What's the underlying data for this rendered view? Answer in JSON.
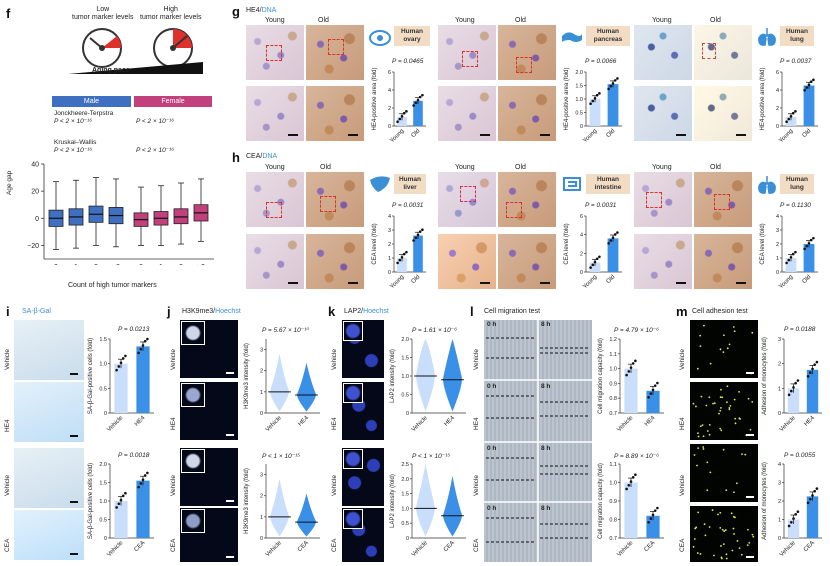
{
  "panels": {
    "f": {
      "label": "f",
      "low_text": "Low\ntumor marker levels",
      "high_text": "High\ntumor marker levels",
      "aging_pace": "Aging pace",
      "male": "Male",
      "female": "Female",
      "jt_label": "Jonckheere-Terpstra",
      "jt_male": "P < 2 × 10⁻¹⁶",
      "jt_female": "P < 2 × 10⁻¹⁶",
      "kw_label": "Kruskal–Wallis",
      "kw_male": "P < 2 × 10⁻¹⁶",
      "kw_female": "P < 2 × 10⁻¹⁶",
      "ylabel": "Age gap",
      "xlabel": "Count of high tumor markers",
      "colors": {
        "male": "#3f6fc1",
        "female": "#c2407c"
      }
    },
    "g": {
      "label": "g",
      "stain_a": "HE4/",
      "stain_b": "DNA",
      "young": "Young",
      "old": "Old",
      "organs": [
        "Human ovary",
        "Human pancreas",
        "Human lung"
      ],
      "pvals": [
        "P = 0.0465",
        "P = 0.0066",
        "P = 0.0037"
      ],
      "ylabel": "HE4-positive area (fold)"
    },
    "h": {
      "label": "h",
      "stain_a": "CEA/",
      "stain_b": "DNA",
      "young": "Young",
      "old": "Old",
      "organs": [
        "Human liver",
        "Human intestine",
        "Human lung"
      ],
      "pvals": [
        "P = 0.0031",
        "P = 0.0031",
        "P = 0.1130"
      ],
      "ylabel": "CEA level (fold)"
    },
    "i": {
      "label": "i",
      "stain": "SA-β-Gal",
      "rows": [
        "Vehicle",
        "HE4",
        "Vehicle",
        "CEA"
      ],
      "pvals": [
        "P = 0.0213",
        "P = 0.0018"
      ],
      "ylabel": "SA-β-Gal-positive cells (fold)",
      "x_top": [
        "Vehicle",
        "HE4"
      ],
      "x_bottom": [
        "Vehicle",
        "CEA"
      ]
    },
    "j": {
      "label": "j",
      "stain_a": "H3K9me3/",
      "stain_b": "Hoechst",
      "rows": [
        "Vehicle",
        "HE4",
        "Vehicle",
        "CEA"
      ],
      "pvals": [
        "P = 5.67 × 10⁻¹⁰",
        "P < 1 × 10⁻¹⁵"
      ],
      "ylabel": "H3K9me3 intensity (fold)",
      "x_top": [
        "Vehicle",
        "HE4"
      ],
      "x_bottom": [
        "Vehicle",
        "CEA"
      ]
    },
    "k": {
      "label": "k",
      "stain_a": "LAP2/",
      "stain_b": "Hoechst",
      "rows": [
        "Vehicle",
        "HE4",
        "Vehicle",
        "CEA"
      ],
      "pvals": [
        "P = 1.61 × 10⁻⁶",
        "P < 1 × 10⁻¹⁵"
      ],
      "ylabel": "LAP2 intensity (fold)",
      "x_top": [
        "Vehicle",
        "HE4"
      ],
      "x_bottom": [
        "Vehicle",
        "CEA"
      ]
    },
    "l": {
      "label": "l",
      "title": "Cell migration test",
      "t0": "0 h",
      "t8": "8 h",
      "rows": [
        "Vehicle",
        "HE4",
        "Vehicle",
        "CEA"
      ],
      "pvals": [
        "P = 4.79 × 10⁻⁶",
        "P = 8.89 × 10⁻⁶"
      ],
      "ylabel": "Cell migration capacity (fold)",
      "x_top": [
        "Vehicle",
        "HE4"
      ],
      "x_bottom": [
        "Vehicle",
        "CEA"
      ]
    },
    "m": {
      "label": "m",
      "title": "Cell adhesion test",
      "rows": [
        "Vehicle",
        "HE4",
        "Vehicle",
        "CEA"
      ],
      "pvals": [
        "P = 0.0188",
        "P = 0.0055"
      ],
      "ylabel": "Adhesion of monocytes (fold)",
      "x_top": [
        "Vehicle",
        "HE4"
      ],
      "x_bottom": [
        "Vehicle",
        "CEA"
      ]
    }
  },
  "chart_data": [
    {
      "type": "box",
      "panel": "f",
      "groups": [
        "Male",
        "Female"
      ],
      "categories": [
        "0",
        "1",
        "2",
        "≥2"
      ],
      "ylim": [
        -30,
        40
      ],
      "yticks": [
        "40",
        "20",
        "0",
        "−20"
      ],
      "series": [
        {
          "name": "Male",
          "median": [
            0,
            1,
            3,
            2
          ],
          "q1": [
            -6,
            -5,
            -3,
            -4
          ],
          "q3": [
            6,
            7,
            9,
            8
          ],
          "min": [
            -23,
            -22,
            -20,
            -21
          ],
          "max": [
            27,
            28,
            30,
            29
          ]
        },
        {
          "name": "Female",
          "median": [
            -1,
            0,
            1,
            4
          ],
          "q1": [
            -6,
            -5,
            -4,
            -2
          ],
          "q3": [
            4,
            5,
            7,
            10
          ],
          "min": [
            -20,
            -20,
            -19,
            -17
          ],
          "max": [
            23,
            24,
            26,
            29
          ]
        }
      ]
    },
    {
      "type": "bar",
      "panel": "g-ovary",
      "categories": [
        "Young",
        "Old"
      ],
      "values": [
        1.0,
        2.8
      ],
      "ylim": [
        0,
        6
      ],
      "yticks": [
        "0",
        "2",
        "4",
        "6"
      ]
    },
    {
      "type": "bar",
      "panel": "g-pancreas",
      "categories": [
        "Young",
        "Old"
      ],
      "values": [
        1.0,
        1.55
      ],
      "ylim": [
        0,
        2
      ],
      "yticks": [
        "0",
        "0.5",
        "1.0",
        "1.5",
        "2.0"
      ]
    },
    {
      "type": "bar",
      "panel": "g-lung",
      "categories": [
        "Young",
        "Old"
      ],
      "values": [
        1.0,
        4.5
      ],
      "ylim": [
        0,
        6
      ],
      "yticks": [
        "0",
        "2",
        "4",
        "6"
      ]
    },
    {
      "type": "bar",
      "panel": "h-liver",
      "categories": [
        "Young",
        "Old"
      ],
      "values": [
        1.0,
        2.6
      ],
      "ylim": [
        0,
        4
      ],
      "yticks": [
        "0",
        "1",
        "2",
        "3",
        "4"
      ]
    },
    {
      "type": "bar",
      "panel": "h-intestine",
      "categories": [
        "Young",
        "Old"
      ],
      "values": [
        1.0,
        3.6
      ],
      "ylim": [
        0,
        6
      ],
      "yticks": [
        "0",
        "2",
        "4",
        "6"
      ]
    },
    {
      "type": "bar",
      "panel": "h-lung",
      "categories": [
        "Young",
        "Old"
      ],
      "values": [
        1.0,
        2.0
      ],
      "ylim": [
        0,
        4
      ],
      "yticks": [
        "0",
        "1",
        "2",
        "3",
        "4"
      ]
    },
    {
      "type": "bar",
      "panel": "i-top",
      "categories": [
        "Vehicle",
        "HE4"
      ],
      "values": [
        1.0,
        1.35
      ],
      "ylim": [
        0,
        1.5
      ],
      "yticks": [
        "0",
        "0.5",
        "1.0",
        "1.5"
      ]
    },
    {
      "type": "bar",
      "panel": "i-bottom",
      "categories": [
        "Vehicle",
        "CEA"
      ],
      "values": [
        1.0,
        1.55
      ],
      "ylim": [
        0,
        2
      ],
      "yticks": [
        "0",
        "0.5",
        "1.0",
        "1.5",
        "2.0"
      ]
    },
    {
      "type": "violin",
      "panel": "j-top",
      "categories": [
        "Vehicle",
        "HE4"
      ],
      "medians": [
        1.0,
        0.85
      ],
      "ylim": [
        0,
        3.5
      ],
      "yticks": [
        "0",
        "1",
        "2",
        "3"
      ]
    },
    {
      "type": "violin",
      "panel": "j-bottom",
      "categories": [
        "Vehicle",
        "CEA"
      ],
      "medians": [
        1.0,
        0.75
      ],
      "ylim": [
        0,
        3.5
      ],
      "yticks": [
        "0",
        "1",
        "2",
        "3"
      ]
    },
    {
      "type": "violin",
      "panel": "k-top",
      "categories": [
        "Vehicle",
        "HE4"
      ],
      "medians": [
        1.0,
        0.9
      ],
      "ylim": [
        0,
        2
      ],
      "yticks": [
        "0",
        "0.5",
        "1.0",
        "1.5",
        "2.0"
      ]
    },
    {
      "type": "violin",
      "panel": "k-bottom",
      "categories": [
        "Vehicle",
        "CEA"
      ],
      "medians": [
        1.0,
        0.75
      ],
      "ylim": [
        0,
        2.5
      ],
      "yticks": [
        "0",
        "0.5",
        "1.0",
        "1.5",
        "2.0",
        "2.5"
      ]
    },
    {
      "type": "bar",
      "panel": "l-top",
      "categories": [
        "Vehicle",
        "HE4"
      ],
      "values": [
        1.0,
        0.85
      ],
      "ylim": [
        0.7,
        1.2
      ],
      "yticks": [
        "0.7",
        "0.8",
        "0.9",
        "1.0",
        "1.1",
        "1.2"
      ]
    },
    {
      "type": "bar",
      "panel": "l-bottom",
      "categories": [
        "Vehicle",
        "CEA"
      ],
      "values": [
        1.0,
        0.82
      ],
      "ylim": [
        0.7,
        1.1
      ],
      "yticks": [
        "0.7",
        "0.8",
        "0.9",
        "1.0",
        "1.1"
      ]
    },
    {
      "type": "bar",
      "panel": "m-top",
      "categories": [
        "Vehicle",
        "HE4"
      ],
      "values": [
        1.0,
        1.75
      ],
      "ylim": [
        0,
        3
      ],
      "yticks": [
        "0",
        "1",
        "2",
        "3"
      ]
    },
    {
      "type": "bar",
      "panel": "m-bottom",
      "categories": [
        "Vehicle",
        "CEA"
      ],
      "values": [
        1.0,
        2.25
      ],
      "ylim": [
        0,
        4
      ],
      "yticks": [
        "0",
        "1",
        "2",
        "3",
        "4"
      ]
    }
  ]
}
